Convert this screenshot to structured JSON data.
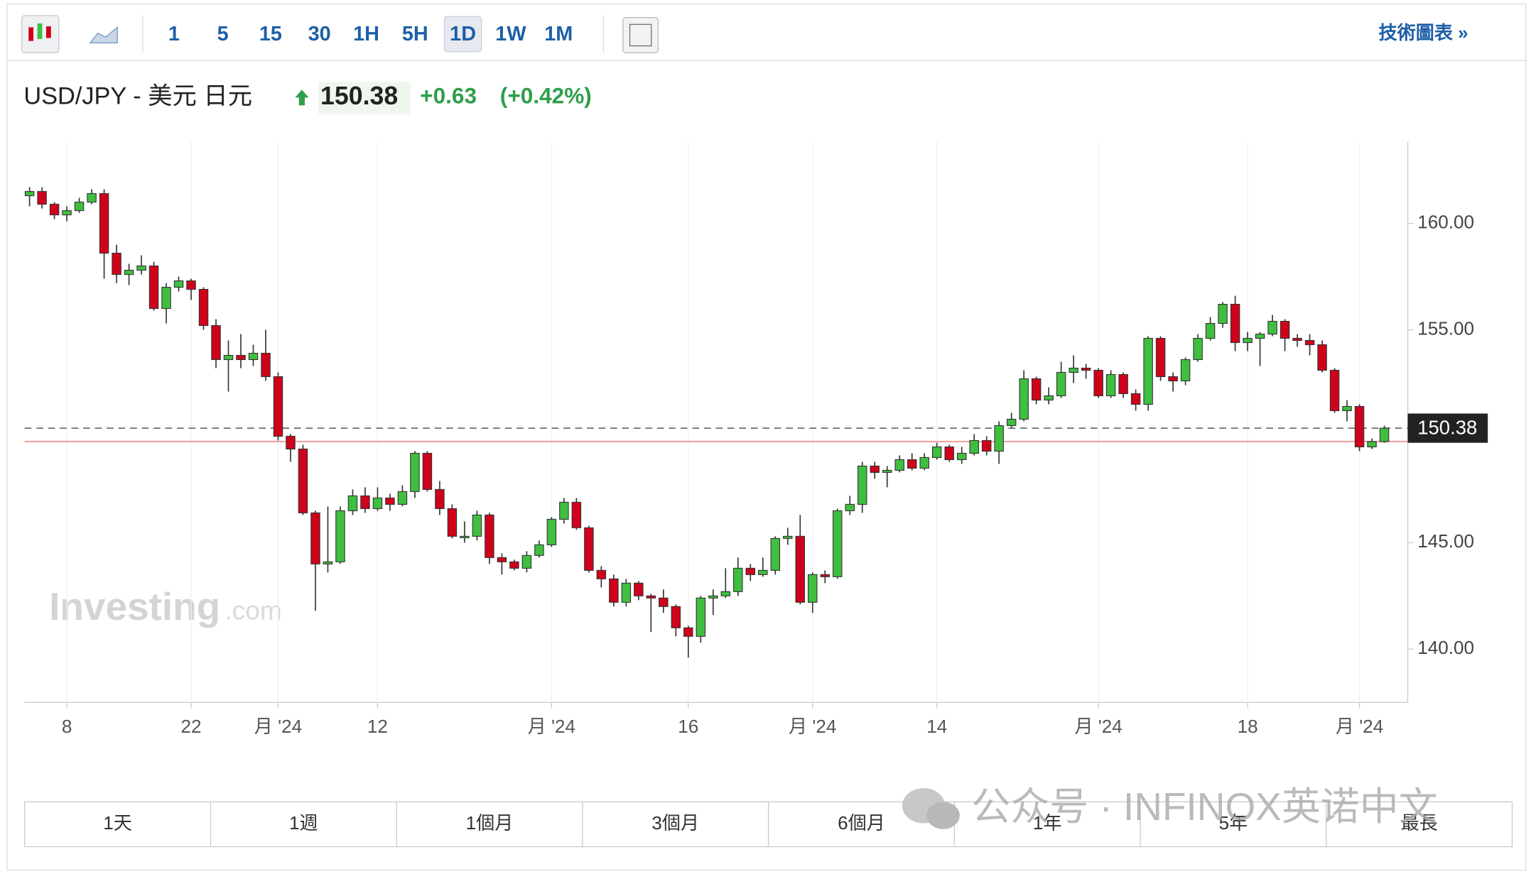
{
  "toolbar": {
    "intervals": [
      "1",
      "5",
      "15",
      "30",
      "1H",
      "5H",
      "1D",
      "1W",
      "1M"
    ],
    "selected": 6,
    "link": "技術圖表 »"
  },
  "header": {
    "symbol": "USD/JPY - 美元 日元",
    "price": "150.38",
    "change": "+0.63",
    "change_pct": "(+0.42%)"
  },
  "chart_data": {
    "type": "candlestick",
    "watermark": "Investing",
    "watermark_suffix": ".com",
    "categories": [
      null,
      null,
      null,
      "8",
      null,
      null,
      null,
      null,
      null,
      null,
      null,
      null,
      null,
      "22",
      null,
      null,
      null,
      null,
      null,
      null,
      "月 '24",
      null,
      null,
      null,
      null,
      null,
      null,
      null,
      "12",
      null,
      null,
      null,
      null,
      null,
      null,
      null,
      null,
      null,
      null,
      null,
      null,
      null,
      "月 '24",
      null,
      null,
      null,
      null,
      null,
      null,
      null,
      null,
      null,
      null,
      "16",
      null,
      null,
      null,
      null,
      null,
      null,
      null,
      null,
      null,
      "月 '24",
      null,
      null,
      null,
      null,
      null,
      null,
      null,
      null,
      null,
      "14",
      null,
      null,
      null,
      null,
      null,
      null,
      null,
      null,
      null,
      null,
      null,
      null,
      "月 '24",
      null,
      null,
      null,
      null,
      null,
      null,
      null,
      null,
      null,
      null,
      null,
      "18",
      null,
      null,
      null,
      null,
      null,
      null,
      null,
      null,
      "月 '24",
      null,
      null
    ],
    "open": [
      161.3,
      161.5,
      160.9,
      160.4,
      160.6,
      161.0,
      161.4,
      158.6,
      157.6,
      157.8,
      158.0,
      156.0,
      157.0,
      157.3,
      156.9,
      155.2,
      153.6,
      153.8,
      153.6,
      153.9,
      152.8,
      150.0,
      149.4,
      146.4,
      144.0,
      144.1,
      146.5,
      147.2,
      146.6,
      147.1,
      146.8,
      147.4,
      149.2,
      147.5,
      146.6,
      145.3,
      145.3,
      146.3,
      144.3,
      144.1,
      143.8,
      144.4,
      144.9,
      146.1,
      146.9,
      145.7,
      143.7,
      143.3,
      142.2,
      143.1,
      142.5,
      142.4,
      142.0,
      141.0,
      140.6,
      142.4,
      142.5,
      142.7,
      143.8,
      143.5,
      143.7,
      145.2,
      145.3,
      142.2,
      143.5,
      143.4,
      146.5,
      146.8,
      148.6,
      148.3,
      148.4,
      148.9,
      148.5,
      149.0,
      149.5,
      148.9,
      149.2,
      149.8,
      149.3,
      150.5,
      150.8,
      152.7,
      151.7,
      151.9,
      153.0,
      153.2,
      153.1,
      151.9,
      152.9,
      152.0,
      151.5,
      154.6,
      152.8,
      152.6,
      153.6,
      154.6,
      155.3,
      156.2,
      154.4,
      154.6,
      154.8,
      155.4,
      154.6,
      154.5,
      154.3,
      153.1,
      151.2,
      151.4,
      149.5,
      149.75
    ],
    "high": [
      161.7,
      161.7,
      161.0,
      160.8,
      161.2,
      161.6,
      161.6,
      159.0,
      158.1,
      158.5,
      158.2,
      157.2,
      157.5,
      157.4,
      157.0,
      155.5,
      154.5,
      154.8,
      154.3,
      155.0,
      153.0,
      150.1,
      149.6,
      146.5,
      146.7,
      146.7,
      147.5,
      147.6,
      147.6,
      147.3,
      147.7,
      149.3,
      149.3,
      147.9,
      146.8,
      146.0,
      146.5,
      146.4,
      144.5,
      144.2,
      144.6,
      145.1,
      146.2,
      147.1,
      147.1,
      145.8,
      143.9,
      143.5,
      143.3,
      143.2,
      142.6,
      142.8,
      142.1,
      141.1,
      142.5,
      142.8,
      143.8,
      144.3,
      144.0,
      144.3,
      145.3,
      145.7,
      146.3,
      143.6,
      143.7,
      146.6,
      147.2,
      148.8,
      148.8,
      148.6,
      149.1,
      149.2,
      149.2,
      149.7,
      149.6,
      149.5,
      150.1,
      150.0,
      150.7,
      151.1,
      153.1,
      152.8,
      152.3,
      153.5,
      153.8,
      153.4,
      153.2,
      153.1,
      153.0,
      152.2,
      154.7,
      154.7,
      153.0,
      153.7,
      154.8,
      155.6,
      156.3,
      156.6,
      154.9,
      154.9,
      155.7,
      155.5,
      154.8,
      154.8,
      154.5,
      153.2,
      151.7,
      151.5,
      149.9,
      150.5
    ],
    "low": [
      160.8,
      160.7,
      160.2,
      160.1,
      160.5,
      160.9,
      157.4,
      157.2,
      157.1,
      157.6,
      155.9,
      155.3,
      156.8,
      156.4,
      155.0,
      153.2,
      152.1,
      153.2,
      153.3,
      152.6,
      149.8,
      148.8,
      146.3,
      141.8,
      143.6,
      144.0,
      146.3,
      146.4,
      146.5,
      146.5,
      146.7,
      147.1,
      147.4,
      146.3,
      145.2,
      145.0,
      145.1,
      144.0,
      143.5,
      143.7,
      143.6,
      144.3,
      144.8,
      145.9,
      145.6,
      143.6,
      142.9,
      142.0,
      142.0,
      142.3,
      140.8,
      141.7,
      140.6,
      139.6,
      140.3,
      141.6,
      142.4,
      142.5,
      143.2,
      143.4,
      143.5,
      144.9,
      142.1,
      141.7,
      143.1,
      143.3,
      146.3,
      146.4,
      148.0,
      147.6,
      148.3,
      148.4,
      148.4,
      148.9,
      148.8,
      148.7,
      149.1,
      149.1,
      148.7,
      150.4,
      150.7,
      151.5,
      151.5,
      151.8,
      152.5,
      152.7,
      151.8,
      151.8,
      151.8,
      151.2,
      151.2,
      152.6,
      152.1,
      152.4,
      153.5,
      154.5,
      155.1,
      154.0,
      154.0,
      153.3,
      154.7,
      154.0,
      154.2,
      153.8,
      153.0,
      151.1,
      150.7,
      149.3,
      149.4,
      149.7
    ],
    "close": [
      161.5,
      160.9,
      160.4,
      160.6,
      161.0,
      161.4,
      158.6,
      157.6,
      157.8,
      158.0,
      156.0,
      157.0,
      157.3,
      156.9,
      155.2,
      153.6,
      153.8,
      153.6,
      153.9,
      152.8,
      150.0,
      149.4,
      146.4,
      144.0,
      144.1,
      146.5,
      147.2,
      146.6,
      147.1,
      146.8,
      147.4,
      149.2,
      147.5,
      146.6,
      145.3,
      145.3,
      146.3,
      144.3,
      144.1,
      143.8,
      144.4,
      144.9,
      146.1,
      146.9,
      145.7,
      143.7,
      143.3,
      142.2,
      143.1,
      142.5,
      142.4,
      142.0,
      141.0,
      140.6,
      142.4,
      142.5,
      142.7,
      143.8,
      143.5,
      143.7,
      145.2,
      145.3,
      142.2,
      143.5,
      143.4,
      146.5,
      146.8,
      148.6,
      148.3,
      148.4,
      148.9,
      148.5,
      149.0,
      149.5,
      148.9,
      149.2,
      149.8,
      149.3,
      150.5,
      150.8,
      152.7,
      151.7,
      151.9,
      153.0,
      153.2,
      153.1,
      151.9,
      152.9,
      152.0,
      151.5,
      154.6,
      152.8,
      152.6,
      153.6,
      154.6,
      155.3,
      156.2,
      154.4,
      154.6,
      154.8,
      155.4,
      154.6,
      154.5,
      154.3,
      153.1,
      151.2,
      151.4,
      149.5,
      149.75,
      150.38
    ],
    "up_color": "#3fbf3f",
    "down_color": "#d0021b",
    "current_price": 150.38,
    "previous_close": 149.75,
    "ylim": [
      137.5,
      163.85
    ],
    "yticks": [
      {
        "value": 140,
        "label": "140.00"
      },
      {
        "value": 145,
        "label": "145.00"
      },
      {
        "value": 155,
        "label": "155.00"
      },
      {
        "value": 160,
        "label": "160.00"
      }
    ],
    "grid": true
  },
  "range_tabs": [
    "1天",
    "1週",
    "1個月",
    "3個月",
    "6個月",
    "1年",
    "5年",
    "最長"
  ],
  "overlay": "公众号 · INFINOX英诺中文"
}
